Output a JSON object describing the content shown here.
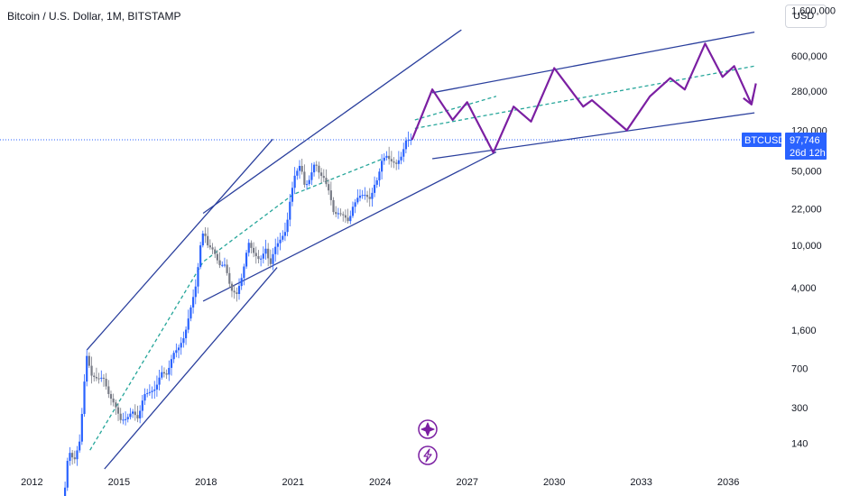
{
  "header": {
    "title": "Bitcoin / U.S. Dollar, 1M, BITSTAMP",
    "currency_button": "USD"
  },
  "colors": {
    "candle_up": "#2962ff",
    "candle_down": "#787b86",
    "channel_line": "#2a3f9d",
    "midline": "#26a69a",
    "projection": "#7b1fa2",
    "price_line": "#2962ff",
    "badge": "#2962ff"
  },
  "icons": [
    "sparkle-icon",
    "lightning-icon"
  ],
  "chart_data": {
    "type": "candlestick",
    "yscale": "log",
    "ylim": [
      80,
      2000000
    ],
    "y_ticks": [
      140,
      300,
      700,
      1600,
      4000,
      10000,
      22000,
      50000,
      120000,
      280000,
      600000,
      1600000
    ],
    "y_tick_labels": [
      "140",
      "300",
      "700",
      "1,600",
      "4,000",
      "10,000",
      "22,000",
      "50,000",
      "120,000",
      "280,000",
      "600,000",
      "1,600,000"
    ],
    "x_ticks": [
      2012,
      2015,
      2018,
      2021,
      2024,
      2027,
      2030,
      2033,
      2036
    ],
    "x_tick_labels": [
      "2012",
      "2015",
      "2018",
      "2021",
      "2024",
      "2027",
      "2030",
      "2033",
      "2036"
    ],
    "xlim": [
      2010.9,
      2037.8
    ],
    "grid": false,
    "last_price": {
      "symbol": "BTCUSD",
      "value": 97746,
      "value_label": "97,746",
      "countdown": "26d 12h"
    },
    "price_path": [
      [
        2013.1,
        30
      ],
      [
        2013.3,
        120
      ],
      [
        2013.5,
        95
      ],
      [
        2013.7,
        150
      ],
      [
        2013.92,
        950
      ],
      [
        2014.1,
        600
      ],
      [
        2014.3,
        560
      ],
      [
        2014.5,
        580
      ],
      [
        2014.7,
        390
      ],
      [
        2014.9,
        320
      ],
      [
        2015.1,
        230
      ],
      [
        2015.3,
        235
      ],
      [
        2015.5,
        280
      ],
      [
        2015.7,
        235
      ],
      [
        2015.9,
        400
      ],
      [
        2016.1,
        420
      ],
      [
        2016.3,
        450
      ],
      [
        2016.5,
        650
      ],
      [
        2016.7,
        610
      ],
      [
        2016.9,
        960
      ],
      [
        2017.1,
        1100
      ],
      [
        2017.3,
        1400
      ],
      [
        2017.5,
        2500
      ],
      [
        2017.7,
        4300
      ],
      [
        2017.85,
        10000
      ],
      [
        2017.96,
        14000
      ],
      [
        2018.1,
        10000
      ],
      [
        2018.3,
        9000
      ],
      [
        2018.5,
        6500
      ],
      [
        2018.7,
        6600
      ],
      [
        2018.9,
        3800
      ],
      [
        2019.1,
        3500
      ],
      [
        2019.3,
        5300
      ],
      [
        2019.5,
        10800
      ],
      [
        2019.7,
        8300
      ],
      [
        2019.9,
        7200
      ],
      [
        2020.1,
        9300
      ],
      [
        2020.25,
        6400
      ],
      [
        2020.4,
        9400
      ],
      [
        2020.6,
        11300
      ],
      [
        2020.8,
        13800
      ],
      [
        2020.96,
        29000
      ],
      [
        2021.1,
        45000
      ],
      [
        2021.3,
        58000
      ],
      [
        2021.45,
        35000
      ],
      [
        2021.6,
        41000
      ],
      [
        2021.8,
        61000
      ],
      [
        2021.96,
        46000
      ],
      [
        2022.1,
        43000
      ],
      [
        2022.3,
        31000
      ],
      [
        2022.45,
        19500
      ],
      [
        2022.6,
        20000
      ],
      [
        2022.8,
        19000
      ],
      [
        2022.96,
        16500
      ],
      [
        2023.1,
        23000
      ],
      [
        2023.3,
        29000
      ],
      [
        2023.5,
        30000
      ],
      [
        2023.7,
        27000
      ],
      [
        2023.85,
        37000
      ],
      [
        2023.96,
        42000
      ],
      [
        2024.1,
        62000
      ],
      [
        2024.25,
        70000
      ],
      [
        2024.4,
        62000
      ],
      [
        2024.6,
        58000
      ],
      [
        2024.8,
        70000
      ],
      [
        2024.92,
        96000
      ],
      [
        2025.05,
        97746
      ]
    ],
    "channel_lines": [
      {
        "name": "early-upper",
        "points": [
          [
            2013.9,
            1050
          ],
          [
            2020.3,
            99000
          ]
        ]
      },
      {
        "name": "early-lower",
        "points": [
          [
            2014.5,
            80
          ],
          [
            2020.45,
            6200
          ]
        ]
      },
      {
        "name": "mid-upper",
        "points": [
          [
            2017.9,
            20000
          ],
          [
            2026.8,
            1050000
          ]
        ]
      },
      {
        "name": "mid-lower",
        "points": [
          [
            2017.9,
            3000
          ],
          [
            2028.0,
            75000
          ]
        ]
      },
      {
        "name": "late-upper",
        "points": [
          [
            2025.8,
            270000
          ],
          [
            2036.9,
            1000000
          ]
        ]
      },
      {
        "name": "late-lower",
        "points": [
          [
            2025.8,
            65000
          ],
          [
            2036.9,
            175000
          ]
        ]
      }
    ],
    "midlines": [
      {
        "name": "mid-trend-1",
        "points": [
          [
            2014.0,
            120
          ],
          [
            2017.9,
            7000
          ],
          [
            2021.0,
            30000
          ],
          [
            2024.1,
            65000
          ]
        ]
      },
      {
        "name": "mid-trend-2",
        "points": [
          [
            2025.2,
            150000
          ],
          [
            2028.0,
            250000
          ]
        ]
      },
      {
        "name": "mid-trend-3",
        "points": [
          [
            2025.2,
            125000
          ],
          [
            2036.9,
            480000
          ]
        ]
      }
    ],
    "projection": [
      [
        2025.1,
        97746
      ],
      [
        2025.8,
        290000
      ],
      [
        2026.5,
        150000
      ],
      [
        2027.0,
        220000
      ],
      [
        2027.9,
        74000
      ],
      [
        2028.6,
        200000
      ],
      [
        2029.2,
        145000
      ],
      [
        2030.0,
        460000
      ],
      [
        2031.0,
        200000
      ],
      [
        2031.3,
        230000
      ],
      [
        2032.5,
        120000
      ],
      [
        2033.3,
        250000
      ],
      [
        2034.0,
        370000
      ],
      [
        2034.5,
        290000
      ],
      [
        2035.2,
        780000
      ],
      [
        2035.8,
        380000
      ],
      [
        2036.2,
        480000
      ],
      [
        2036.8,
        210000
      ],
      [
        2036.95,
        330000
      ]
    ]
  }
}
